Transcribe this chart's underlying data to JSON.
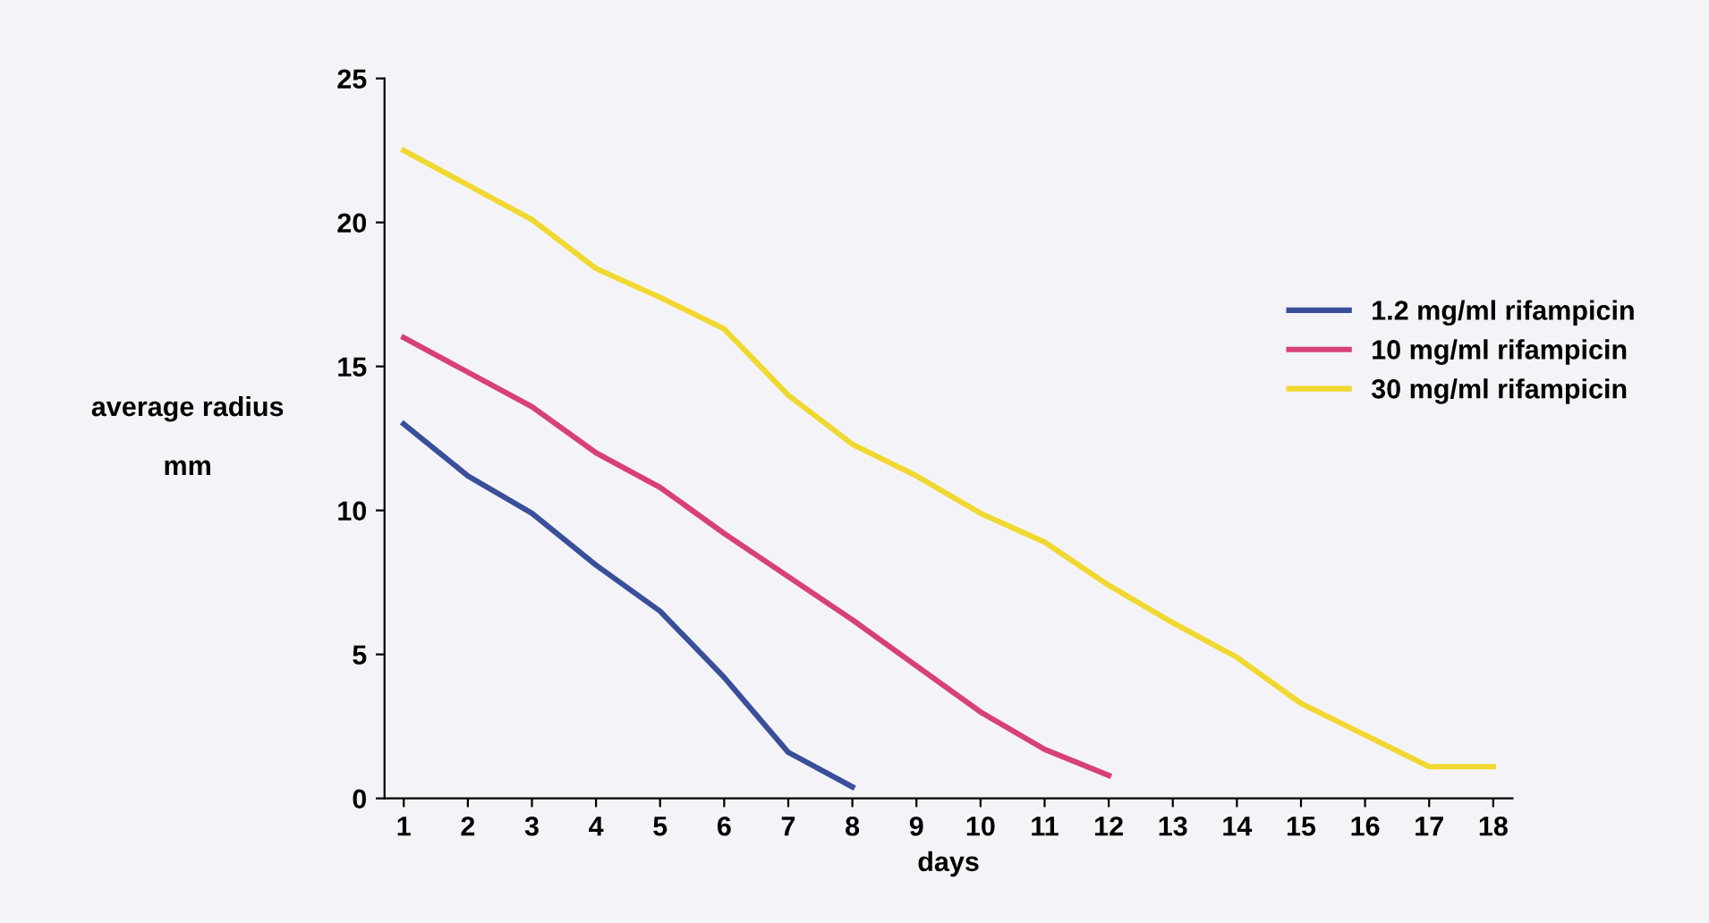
{
  "chart_data": {
    "type": "line",
    "xlabel": "days",
    "ylabel": "average radius\n\nmm",
    "x": [
      1,
      2,
      3,
      4,
      5,
      6,
      7,
      8,
      9,
      10,
      11,
      12,
      13,
      14,
      15,
      16,
      17,
      18
    ],
    "series": [
      {
        "name": "1.2 mg/ml rifampicin",
        "color": "#3a4f9a",
        "values": [
          13,
          11.2,
          9.9,
          8.1,
          6.5,
          4.2,
          1.6,
          0.4,
          null,
          null,
          null,
          null,
          null,
          null,
          null,
          null,
          null,
          null
        ]
      },
      {
        "name": "10 mg/ml rifampicin",
        "color": "#d8407a",
        "values": [
          16,
          14.8,
          13.6,
          12,
          10.8,
          9.2,
          7.7,
          6.2,
          4.6,
          3,
          1.7,
          0.8,
          null,
          null,
          null,
          null,
          null,
          null
        ]
      },
      {
        "name": "30 mg/ml rifampicin",
        "color": "#f0d830",
        "values": [
          22.5,
          21.3,
          20.1,
          18.4,
          17.4,
          16.3,
          14,
          12.3,
          11.2,
          9.9,
          8.9,
          7.4,
          6.1,
          4.9,
          3.3,
          2.2,
          1.1,
          1.1
        ]
      }
    ],
    "xlim": [
      0.7,
      18.3
    ],
    "ylim": [
      0,
      25
    ],
    "xticks": [
      1,
      2,
      3,
      4,
      5,
      6,
      7,
      8,
      9,
      10,
      11,
      12,
      13,
      14,
      15,
      16,
      17,
      18
    ],
    "yticks": [
      0,
      5,
      10,
      15,
      20,
      25
    ],
    "grid": false,
    "legend": "right",
    "marker": "none",
    "line_style": "solid"
  }
}
